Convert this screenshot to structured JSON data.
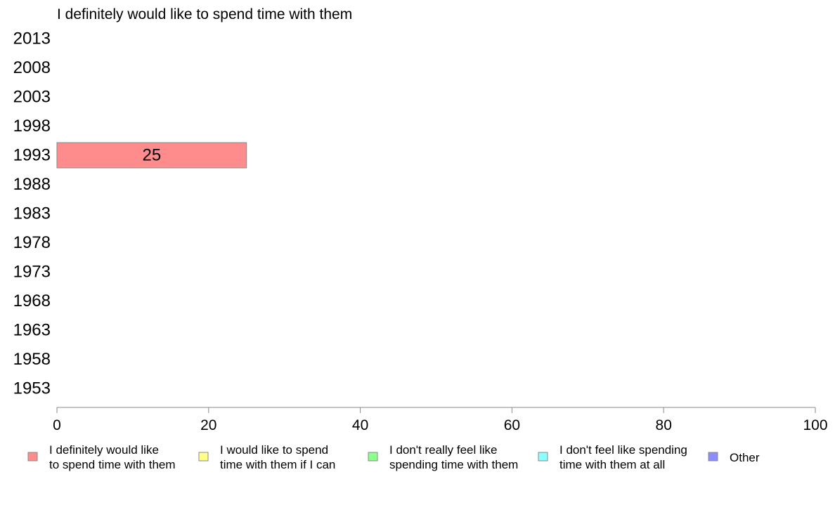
{
  "chart_data": {
    "type": "bar",
    "orientation": "horizontal",
    "stacked": true,
    "title": "I definitely would like to spend time with them",
    "categories": [
      "2013",
      "2008",
      "2003",
      "1998",
      "1993",
      "1988",
      "1983",
      "1978",
      "1973",
      "1968",
      "1963",
      "1958",
      "1953"
    ],
    "series": [
      {
        "name": "I definitely would like to spend time with them",
        "legend_lines": [
          "I definitely would like",
          "to spend time with them"
        ],
        "color": "#ff8c8c",
        "values": [
          null,
          null,
          null,
          null,
          25,
          null,
          null,
          null,
          null,
          null,
          null,
          null,
          null
        ]
      },
      {
        "name": "I would like to spend time with them if I can",
        "legend_lines": [
          "I would like to spend",
          "time with them if I can"
        ],
        "color": "#ffff8c",
        "values": [
          null,
          null,
          null,
          null,
          null,
          null,
          null,
          null,
          null,
          null,
          null,
          null,
          null
        ]
      },
      {
        "name": "I don't really feel like spending time with them",
        "legend_lines": [
          "I don't really feel like",
          "spending time with them"
        ],
        "color": "#8cff8c",
        "values": [
          null,
          null,
          null,
          null,
          null,
          null,
          null,
          null,
          null,
          null,
          null,
          null,
          null
        ]
      },
      {
        "name": "I don't feel like spending time with them at all",
        "legend_lines": [
          "I don't feel like spending",
          "time with them at all"
        ],
        "color": "#8cffff",
        "values": [
          null,
          null,
          null,
          null,
          null,
          null,
          null,
          null,
          null,
          null,
          null,
          null,
          null
        ]
      },
      {
        "name": "Other",
        "legend_lines": [
          "Other"
        ],
        "color": "#8c8cff",
        "values": [
          null,
          null,
          null,
          null,
          null,
          null,
          null,
          null,
          null,
          null,
          null,
          null,
          null
        ]
      }
    ],
    "data_labels": [
      {
        "category": "1993",
        "series": 0,
        "text": "25"
      }
    ],
    "xlim": [
      0,
      100
    ],
    "xticks": [
      "0",
      "20",
      "40",
      "60",
      "80",
      "100"
    ],
    "grid": false,
    "legend_position": "bottom"
  }
}
